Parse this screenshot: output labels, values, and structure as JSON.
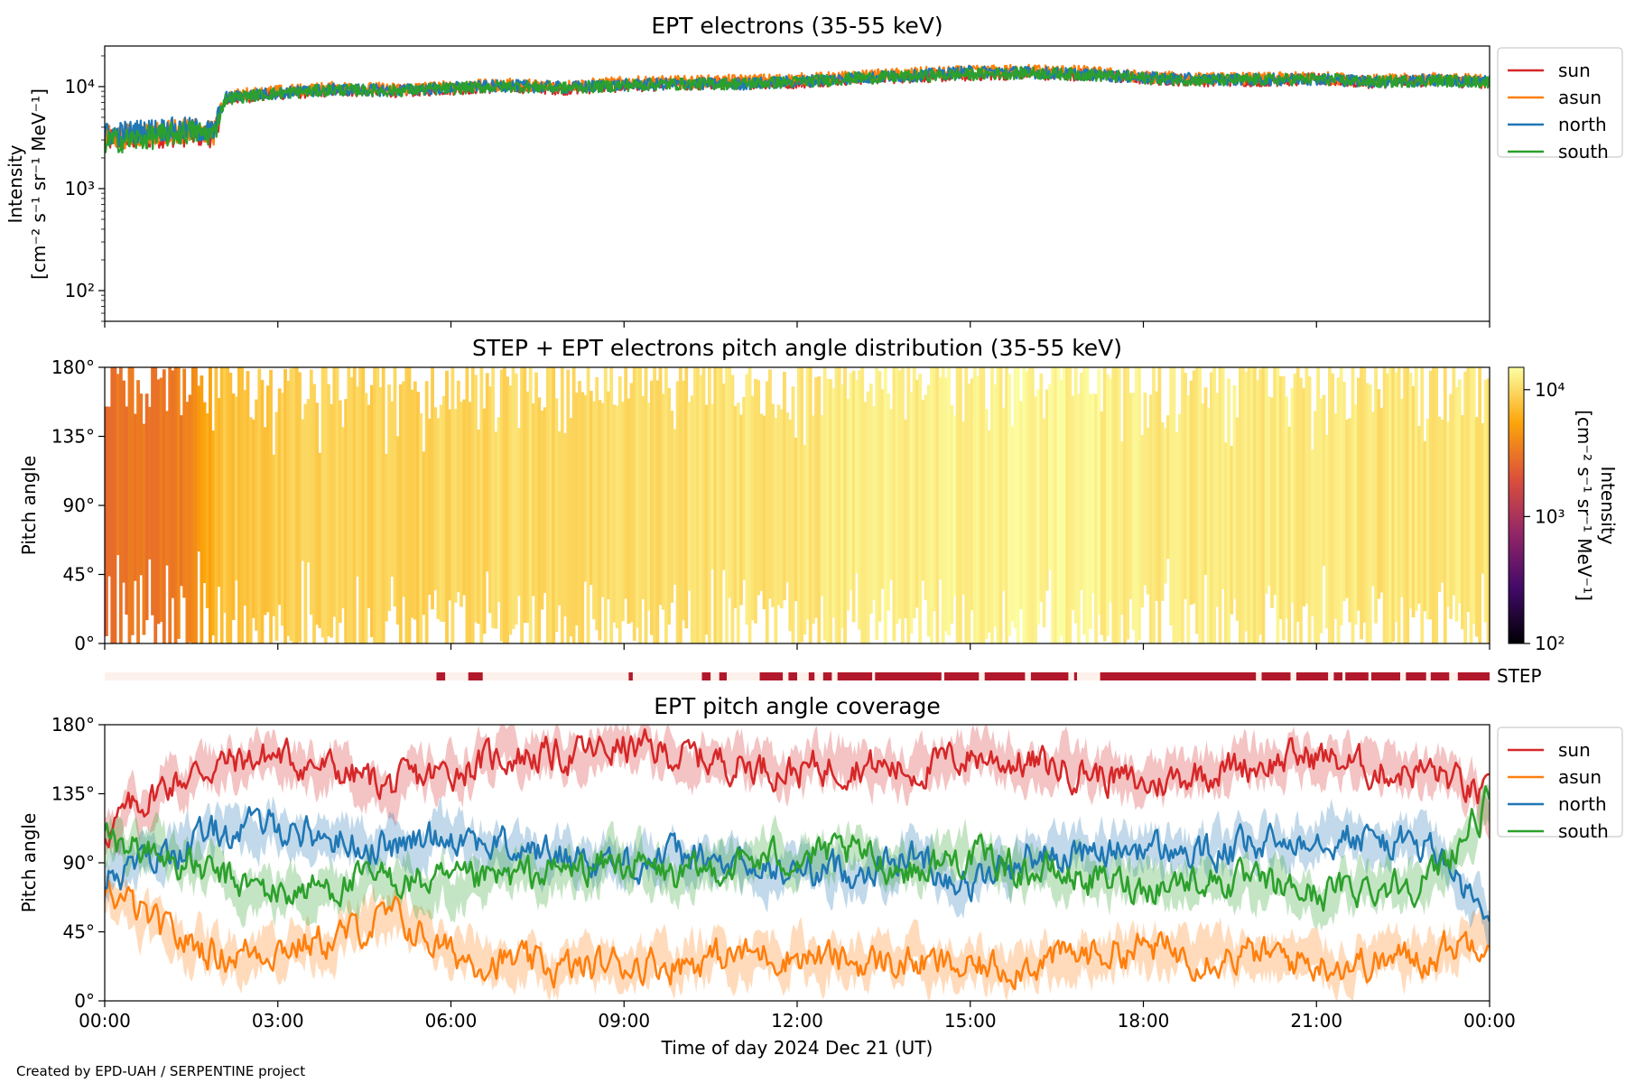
{
  "figure": {
    "credit": "Created by EPD-UAH / SERPENTINE project",
    "xlabel": "Time of day 2024 Dec 21 (UT)",
    "time_ticks": [
      "00:00",
      "03:00",
      "06:00",
      "09:00",
      "12:00",
      "15:00",
      "18:00",
      "21:00",
      "00:00"
    ]
  },
  "chart_data": [
    {
      "id": "ept-intensity",
      "type": "line",
      "title": "EPT electrons (35-55 keV)",
      "ylabel_line1": "Intensity",
      "ylabel_line2": "[cm⁻² s⁻¹ sr⁻¹ MeV⁻¹]",
      "yscale": "log",
      "ylim": [
        50,
        25000
      ],
      "xlim_hours": [
        0,
        24
      ],
      "ytick_labels": [
        "10²",
        "10³",
        "10⁴"
      ],
      "ytick_values": [
        100,
        1000,
        10000
      ],
      "legend": "outside right",
      "x_hours": [
        0,
        0.5,
        1.0,
        1.5,
        1.9,
        2.1,
        2.5,
        3.0,
        4.0,
        5.0,
        6.0,
        7.0,
        8.0,
        9.0,
        10.0,
        11.0,
        12.0,
        13.0,
        14.0,
        15.0,
        16.0,
        17.0,
        18.0,
        19.0,
        20.0,
        21.0,
        22.0,
        23.0,
        24.0
      ],
      "series": [
        {
          "name": "sun",
          "color": "#d62728",
          "values": [
            3000,
            3100,
            3300,
            3400,
            3300,
            7500,
            8000,
            8500,
            9200,
            9000,
            9500,
            10000,
            9500,
            10200,
            10500,
            10800,
            11000,
            12000,
            12500,
            13000,
            13500,
            13000,
            12000,
            11500,
            11500,
            11800,
            11000,
            11500,
            11000
          ]
        },
        {
          "name": "asun",
          "color": "#ff7f0e",
          "values": [
            3200,
            3300,
            3600,
            3700,
            3500,
            8000,
            8600,
            9000,
            9800,
            9500,
            10000,
            10500,
            10200,
            11000,
            11200,
            11500,
            11800,
            12500,
            13500,
            14000,
            14500,
            14000,
            12500,
            12000,
            12000,
            12300,
            11500,
            12000,
            11500
          ]
        },
        {
          "name": "north",
          "color": "#1f77b4",
          "values": [
            3400,
            3600,
            3800,
            3800,
            3600,
            7800,
            8200,
            8700,
            9400,
            9200,
            9700,
            10200,
            9800,
            10400,
            10700,
            10600,
            11200,
            12200,
            12800,
            14000,
            13800,
            13200,
            12200,
            11800,
            11700,
            11900,
            11200,
            11600,
            11200
          ]
        },
        {
          "name": "south",
          "color": "#2ca02c",
          "values": [
            2900,
            3000,
            3300,
            3600,
            3400,
            7600,
            8100,
            8600,
            9300,
            9100,
            9600,
            10100,
            9700,
            10300,
            10600,
            10700,
            11100,
            12100,
            12600,
            13200,
            13600,
            13100,
            12100,
            11600,
            11600,
            11900,
            11100,
            11500,
            11100
          ]
        }
      ]
    },
    {
      "id": "pad",
      "type": "heatmap",
      "title": "STEP + EPT electrons pitch angle distribution (35-55 keV)",
      "ylabel": "Pitch angle",
      "ylim": [
        0,
        180
      ],
      "xlim_hours": [
        0,
        24
      ],
      "ytick_labels": [
        "0°",
        "45°",
        "90°",
        "135°",
        "180°"
      ],
      "ytick_values": [
        0,
        45,
        90,
        135,
        180
      ],
      "colorbar": {
        "label_line1": "Intensity",
        "label_line2": "[cm⁻² s⁻¹ sr⁻¹ MeV⁻¹]",
        "scale": "log",
        "range": [
          100,
          15000
        ],
        "tick_labels": [
          "10²",
          "10³",
          "10⁴"
        ],
        "tick_values": [
          100,
          1000,
          10000
        ],
        "colors": [
          "#000004",
          "#420a68",
          "#932667",
          "#dd513a",
          "#fca50a",
          "#fcffa4"
        ]
      },
      "time_bins_hours": [
        0,
        0.5,
        1.0,
        1.5,
        2.0,
        2.5,
        3.0,
        3.5,
        4.0,
        4.5,
        5.0,
        5.5,
        6.0,
        6.5,
        7.0,
        7.5,
        8.0,
        8.5,
        9.0,
        9.5,
        10.0,
        10.5,
        11.0,
        11.5,
        12.0,
        12.5,
        13.0,
        13.5,
        14.0,
        14.5,
        15.0,
        15.5,
        16.0,
        16.5,
        17.0,
        17.5,
        18.0,
        18.5,
        19.0,
        19.5,
        20.0,
        20.5,
        21.0,
        21.5,
        22.0,
        22.5,
        23.0,
        23.5
      ],
      "intensity": [
        3000,
        3100,
        3300,
        3400,
        7500,
        8000,
        8300,
        8700,
        9000,
        9200,
        9100,
        9300,
        9600,
        9800,
        10000,
        9900,
        9800,
        10000,
        10200,
        10300,
        10500,
        10600,
        10800,
        10900,
        11000,
        11500,
        12000,
        12200,
        12500,
        12800,
        13000,
        13200,
        13500,
        13300,
        13000,
        12500,
        12000,
        11800,
        11500,
        11600,
        11500,
        11700,
        11800,
        11500,
        11000,
        11300,
        11500,
        11200
      ]
    },
    {
      "id": "step-coverage",
      "type": "bar",
      "label": "STEP",
      "xlim_hours": [
        0,
        24
      ],
      "available_color": "#b2182b",
      "background_color": "#fdf1ec",
      "available_intervals_hours": [
        [
          5.75,
          5.9
        ],
        [
          6.3,
          6.55
        ],
        [
          9.08,
          9.15
        ],
        [
          10.35,
          10.5
        ],
        [
          10.65,
          10.78
        ],
        [
          11.35,
          11.75
        ],
        [
          11.85,
          12.0
        ],
        [
          12.2,
          12.3
        ],
        [
          12.45,
          12.6
        ],
        [
          12.7,
          13.3
        ],
        [
          13.35,
          14.5
        ],
        [
          14.55,
          15.15
        ],
        [
          15.25,
          15.95
        ],
        [
          16.05,
          16.7
        ],
        [
          16.8,
          16.85
        ],
        [
          17.25,
          19.95
        ],
        [
          20.05,
          20.55
        ],
        [
          20.65,
          21.2
        ],
        [
          21.3,
          21.45
        ],
        [
          21.5,
          21.9
        ],
        [
          21.95,
          22.45
        ],
        [
          22.55,
          22.9
        ],
        [
          22.98,
          23.3
        ],
        [
          23.45,
          24.0
        ]
      ]
    },
    {
      "id": "ept-coverage",
      "type": "line",
      "title": "EPT pitch angle coverage",
      "ylabel": "Pitch angle",
      "ylim": [
        0,
        180
      ],
      "xlim_hours": [
        0,
        24
      ],
      "ytick_labels": [
        "0°",
        "45°",
        "90°",
        "135°",
        "180°"
      ],
      "ytick_values": [
        0,
        45,
        90,
        135,
        180
      ],
      "legend": "outside right",
      "x_hours": [
        0,
        1,
        2,
        3,
        4,
        5,
        6,
        7,
        8,
        9,
        10,
        11,
        12,
        13,
        14,
        15,
        16,
        17,
        18,
        19,
        20,
        21,
        22,
        23,
        24
      ],
      "series": [
        {
          "name": "sun",
          "color": "#d62728",
          "values": [
            110,
            140,
            155,
            160,
            150,
            140,
            150,
            160,
            160,
            165,
            160,
            155,
            150,
            155,
            150,
            160,
            155,
            150,
            140,
            150,
            155,
            160,
            150,
            150,
            130
          ]
        },
        {
          "name": "asun",
          "color": "#ff7f0e",
          "values": [
            75,
            45,
            30,
            35,
            40,
            55,
            30,
            25,
            20,
            25,
            25,
            30,
            30,
            25,
            25,
            20,
            25,
            30,
            35,
            30,
            30,
            25,
            25,
            30,
            45
          ]
        },
        {
          "name": "north",
          "color": "#1f77b4",
          "values": [
            80,
            95,
            110,
            115,
            105,
            100,
            110,
            100,
            95,
            90,
            95,
            85,
            85,
            85,
            95,
            75,
            95,
            95,
            100,
            95,
            100,
            110,
            105,
            100,
            50
          ]
        },
        {
          "name": "south",
          "color": "#2ca02c",
          "values": [
            105,
            95,
            80,
            70,
            75,
            80,
            75,
            80,
            85,
            90,
            80,
            90,
            95,
            95,
            85,
            95,
            85,
            80,
            75,
            80,
            75,
            70,
            75,
            80,
            130
          ]
        }
      ]
    }
  ]
}
